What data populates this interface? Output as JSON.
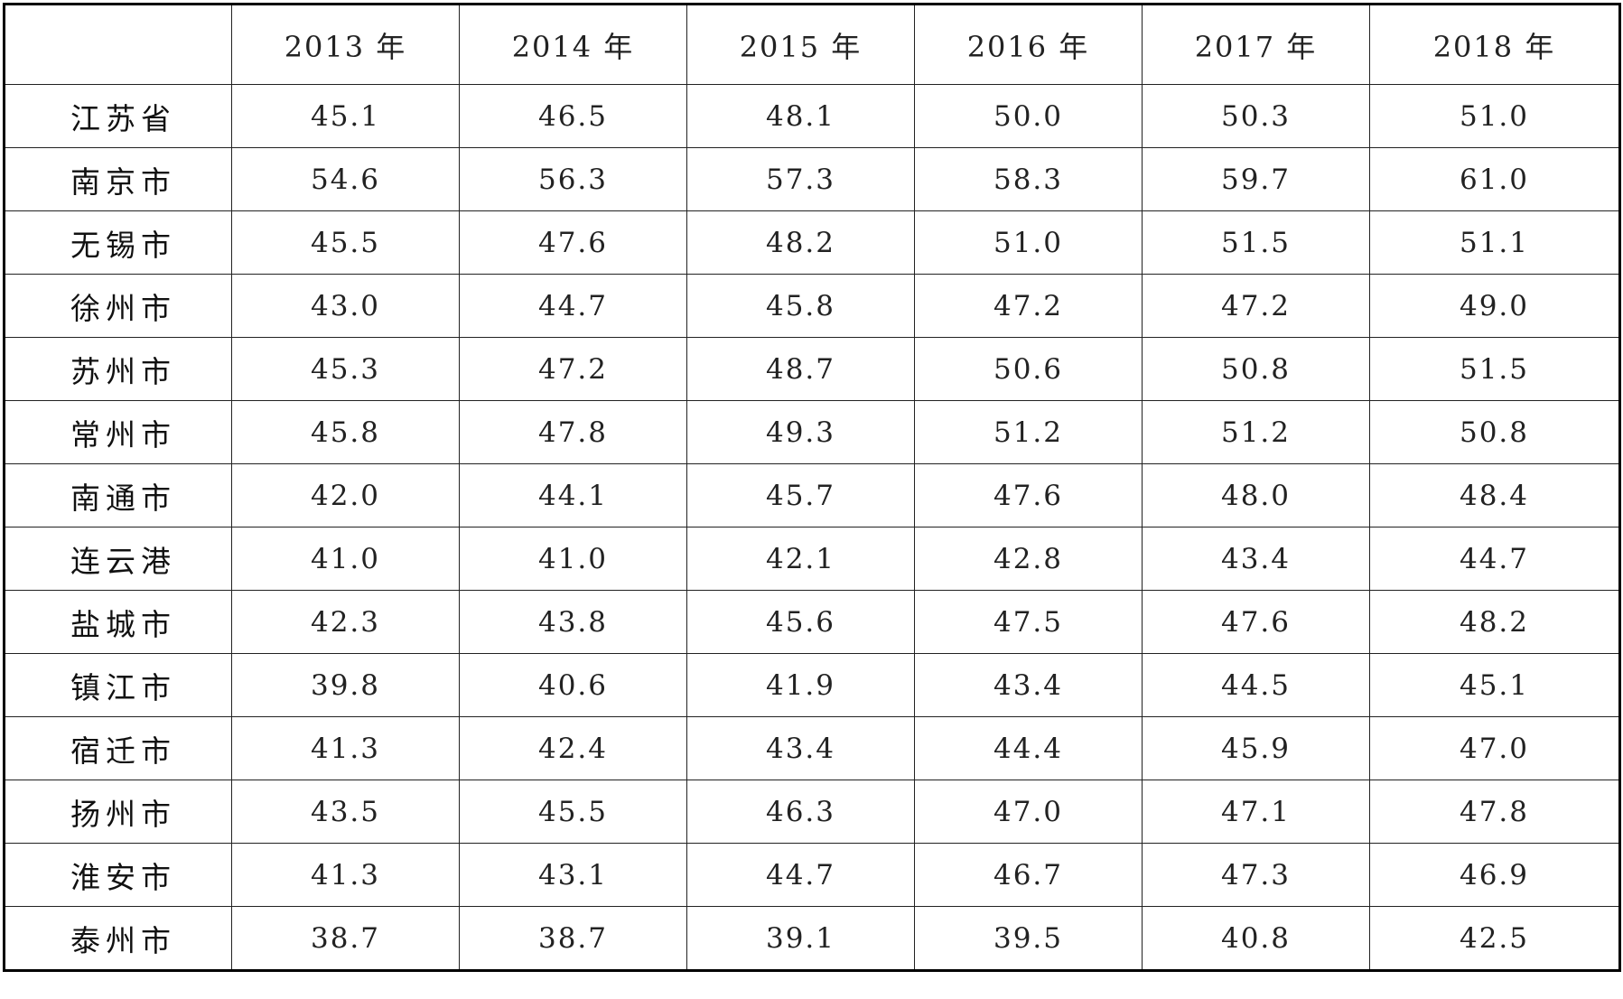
{
  "table": {
    "corner": "",
    "columns": [
      "2013 年",
      "2014 年",
      "2015 年",
      "2016 年",
      "2017 年",
      "2018 年"
    ],
    "rows": [
      {
        "name": "江苏省",
        "values": [
          "45.1",
          "46.5",
          "48.1",
          "50.0",
          "50.3",
          "51.0"
        ]
      },
      {
        "name": "南京市",
        "values": [
          "54.6",
          "56.3",
          "57.3",
          "58.3",
          "59.7",
          "61.0"
        ]
      },
      {
        "name": "无锡市",
        "values": [
          "45.5",
          "47.6",
          "48.2",
          "51.0",
          "51.5",
          "51.1"
        ]
      },
      {
        "name": "徐州市",
        "values": [
          "43.0",
          "44.7",
          "45.8",
          "47.2",
          "47.2",
          "49.0"
        ]
      },
      {
        "name": "苏州市",
        "values": [
          "45.3",
          "47.2",
          "48.7",
          "50.6",
          "50.8",
          "51.5"
        ]
      },
      {
        "name": "常州市",
        "values": [
          "45.8",
          "47.8",
          "49.3",
          "51.2",
          "51.2",
          "50.8"
        ]
      },
      {
        "name": "南通市",
        "values": [
          "42.0",
          "44.1",
          "45.7",
          "47.6",
          "48.0",
          "48.4"
        ]
      },
      {
        "name": "连云港",
        "values": [
          "41.0",
          "41.0",
          "42.1",
          "42.8",
          "43.4",
          "44.7"
        ]
      },
      {
        "name": "盐城市",
        "values": [
          "42.3",
          "43.8",
          "45.6",
          "47.5",
          "47.6",
          "48.2"
        ]
      },
      {
        "name": "镇江市",
        "values": [
          "39.8",
          "40.6",
          "41.9",
          "43.4",
          "44.5",
          "45.1"
        ]
      },
      {
        "name": "宿迁市",
        "values": [
          "41.3",
          "42.4",
          "43.4",
          "44.4",
          "45.9",
          "47.0"
        ]
      },
      {
        "name": "扬州市",
        "values": [
          "43.5",
          "45.5",
          "46.3",
          "47.0",
          "47.1",
          "47.8"
        ]
      },
      {
        "name": "淮安市",
        "values": [
          "41.3",
          "43.1",
          "44.7",
          "46.7",
          "47.3",
          "46.9"
        ]
      },
      {
        "name": "泰州市",
        "values": [
          "38.7",
          "38.7",
          "39.1",
          "39.5",
          "40.8",
          "42.5"
        ]
      }
    ]
  }
}
